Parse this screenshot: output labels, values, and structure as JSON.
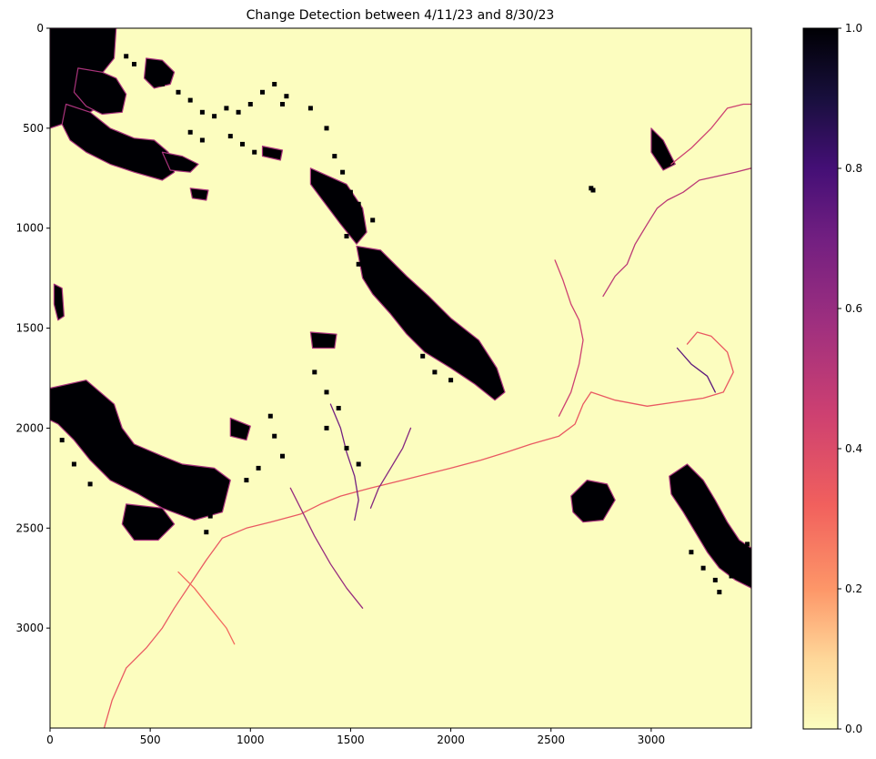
{
  "chart_data": {
    "type": "heatmap",
    "title": "Change Detection between 4/11/23 and 8/30/23",
    "xlabel": "",
    "ylabel": "",
    "xlim": [
      0,
      3500
    ],
    "ylim": [
      3500,
      0
    ],
    "x_ticks": [
      0,
      500,
      1000,
      1500,
      2000,
      2500,
      3000
    ],
    "y_ticks": [
      0,
      500,
      1000,
      1500,
      2000,
      2500,
      3000
    ],
    "colorbar": {
      "colormap": "magma_r",
      "range": [
        0,
        1
      ],
      "ticks": [
        "0.0",
        "0.2",
        "0.4",
        "0.6",
        "0.8",
        "1.0"
      ]
    },
    "background_value": 0.0,
    "grid": false,
    "change_regions": [
      {
        "points": [
          [
            0,
            0
          ],
          [
            330,
            0
          ],
          [
            320,
            150
          ],
          [
            240,
            250
          ],
          [
            230,
            400
          ],
          [
            140,
            460
          ],
          [
            60,
            480
          ],
          [
            0,
            500
          ]
        ],
        "value": 1.0
      },
      {
        "points": [
          [
            80,
            380
          ],
          [
            200,
            420
          ],
          [
            300,
            500
          ],
          [
            420,
            550
          ],
          [
            520,
            560
          ],
          [
            590,
            620
          ],
          [
            620,
            720
          ],
          [
            560,
            760
          ],
          [
            420,
            720
          ],
          [
            300,
            680
          ],
          [
            180,
            620
          ],
          [
            100,
            560
          ],
          [
            60,
            480
          ]
        ],
        "value": 1.0
      },
      {
        "points": [
          [
            140,
            200
          ],
          [
            260,
            220
          ],
          [
            330,
            250
          ],
          [
            380,
            330
          ],
          [
            360,
            420
          ],
          [
            260,
            430
          ],
          [
            180,
            390
          ],
          [
            120,
            320
          ]
        ],
        "value": 1.0
      },
      {
        "points": [
          [
            480,
            150
          ],
          [
            560,
            160
          ],
          [
            620,
            220
          ],
          [
            600,
            280
          ],
          [
            520,
            300
          ],
          [
            470,
            250
          ]
        ],
        "value": 1.0
      },
      {
        "points": [
          [
            560,
            620
          ],
          [
            660,
            640
          ],
          [
            740,
            680
          ],
          [
            700,
            720
          ],
          [
            600,
            710
          ]
        ],
        "value": 1.0
      },
      {
        "points": [
          [
            1530,
            1090
          ],
          [
            1650,
            1110
          ],
          [
            1780,
            1240
          ],
          [
            1890,
            1340
          ],
          [
            2000,
            1450
          ],
          [
            2140,
            1560
          ],
          [
            2230,
            1700
          ],
          [
            2270,
            1820
          ],
          [
            2220,
            1860
          ],
          [
            2120,
            1780
          ],
          [
            2000,
            1700
          ],
          [
            1870,
            1620
          ],
          [
            1780,
            1530
          ],
          [
            1700,
            1430
          ],
          [
            1610,
            1330
          ],
          [
            1560,
            1250
          ]
        ],
        "value": 1.0
      },
      {
        "points": [
          [
            1300,
            700
          ],
          [
            1480,
            780
          ],
          [
            1560,
            900
          ],
          [
            1580,
            1020
          ],
          [
            1530,
            1080
          ],
          [
            1450,
            980
          ],
          [
            1360,
            860
          ],
          [
            1300,
            780
          ]
        ],
        "value": 1.0
      },
      {
        "points": [
          [
            0,
            1800
          ],
          [
            180,
            1760
          ],
          [
            320,
            1880
          ],
          [
            360,
            2000
          ],
          [
            420,
            2080
          ],
          [
            560,
            2140
          ],
          [
            660,
            2180
          ],
          [
            820,
            2200
          ],
          [
            900,
            2260
          ],
          [
            860,
            2420
          ],
          [
            720,
            2460
          ],
          [
            560,
            2400
          ],
          [
            440,
            2330
          ],
          [
            300,
            2260
          ],
          [
            200,
            2160
          ],
          [
            120,
            2060
          ],
          [
            40,
            1980
          ],
          [
            0,
            1960
          ]
        ],
        "value": 1.0
      },
      {
        "points": [
          [
            380,
            2380
          ],
          [
            560,
            2400
          ],
          [
            620,
            2480
          ],
          [
            540,
            2560
          ],
          [
            420,
            2560
          ],
          [
            360,
            2480
          ]
        ],
        "value": 1.0
      },
      {
        "points": [
          [
            2600,
            2340
          ],
          [
            2680,
            2260
          ],
          [
            2780,
            2280
          ],
          [
            2820,
            2360
          ],
          [
            2760,
            2460
          ],
          [
            2660,
            2470
          ],
          [
            2610,
            2420
          ]
        ],
        "value": 1.0
      },
      {
        "points": [
          [
            3090,
            2240
          ],
          [
            3180,
            2180
          ],
          [
            3260,
            2260
          ],
          [
            3320,
            2360
          ],
          [
            3380,
            2470
          ],
          [
            3440,
            2560
          ],
          [
            3500,
            2600
          ],
          [
            3500,
            2800
          ],
          [
            3420,
            2760
          ],
          [
            3340,
            2700
          ],
          [
            3280,
            2620
          ],
          [
            3220,
            2520
          ],
          [
            3160,
            2420
          ],
          [
            3100,
            2330
          ]
        ],
        "value": 1.0
      },
      {
        "points": [
          [
            3000,
            500
          ],
          [
            3060,
            560
          ],
          [
            3120,
            680
          ],
          [
            3060,
            710
          ],
          [
            3000,
            620
          ]
        ],
        "value": 1.0
      },
      {
        "points": [
          [
            900,
            1950
          ],
          [
            1000,
            1990
          ],
          [
            980,
            2060
          ],
          [
            900,
            2040
          ]
        ],
        "value": 1.0
      },
      {
        "points": [
          [
            20,
            1280
          ],
          [
            60,
            1300
          ],
          [
            70,
            1440
          ],
          [
            40,
            1460
          ],
          [
            20,
            1380
          ]
        ],
        "value": 1.0
      },
      {
        "points": [
          [
            1300,
            1520
          ],
          [
            1430,
            1530
          ],
          [
            1420,
            1600
          ],
          [
            1310,
            1600
          ]
        ],
        "value": 1.0
      },
      {
        "points": [
          [
            700,
            800
          ],
          [
            790,
            810
          ],
          [
            780,
            860
          ],
          [
            710,
            850
          ]
        ],
        "value": 1.0
      },
      {
        "points": [
          [
            1060,
            590
          ],
          [
            1160,
            610
          ],
          [
            1150,
            660
          ],
          [
            1060,
            640
          ]
        ],
        "value": 1.0
      }
    ],
    "change_lines": [
      {
        "points": [
          [
            270,
            3500
          ],
          [
            310,
            3360
          ],
          [
            380,
            3200
          ],
          [
            480,
            3100
          ],
          [
            560,
            3000
          ],
          [
            620,
            2900
          ],
          [
            700,
            2780
          ],
          [
            780,
            2660
          ],
          [
            860,
            2550
          ],
          [
            980,
            2500
          ],
          [
            1100,
            2470
          ],
          [
            1250,
            2430
          ],
          [
            1350,
            2380
          ],
          [
            1450,
            2340
          ],
          [
            1600,
            2300
          ],
          [
            1760,
            2260
          ],
          [
            1880,
            2230
          ],
          [
            2000,
            2200
          ],
          [
            2150,
            2160
          ],
          [
            2280,
            2120
          ],
          [
            2400,
            2080
          ],
          [
            2540,
            2040
          ],
          [
            2620,
            1980
          ],
          [
            2660,
            1880
          ],
          [
            2700,
            1820
          ],
          [
            2820,
            1860
          ],
          [
            2980,
            1890
          ],
          [
            3120,
            1870
          ],
          [
            3260,
            1850
          ],
          [
            3360,
            1820
          ],
          [
            3410,
            1720
          ],
          [
            3380,
            1620
          ],
          [
            3300,
            1540
          ],
          [
            3230,
            1520
          ],
          [
            3180,
            1580
          ]
        ],
        "value": 0.35
      },
      {
        "points": [
          [
            2540,
            1940
          ],
          [
            2600,
            1820
          ],
          [
            2640,
            1680
          ],
          [
            2660,
            1560
          ],
          [
            2640,
            1460
          ],
          [
            2600,
            1380
          ],
          [
            2560,
            1260
          ],
          [
            2520,
            1160
          ]
        ],
        "value": 0.45
      },
      {
        "points": [
          [
            2760,
            1340
          ],
          [
            2820,
            1240
          ],
          [
            2880,
            1180
          ],
          [
            2920,
            1080
          ],
          [
            2980,
            980
          ],
          [
            3030,
            900
          ],
          [
            3080,
            860
          ],
          [
            3160,
            820
          ],
          [
            3240,
            760
          ],
          [
            3330,
            740
          ],
          [
            3420,
            720
          ],
          [
            3500,
            700
          ]
        ],
        "value": 0.5
      },
      {
        "points": [
          [
            3100,
            680
          ],
          [
            3200,
            600
          ],
          [
            3300,
            500
          ],
          [
            3380,
            400
          ],
          [
            3460,
            380
          ],
          [
            3500,
            380
          ]
        ],
        "value": 0.45
      },
      {
        "points": [
          [
            1400,
            1880
          ],
          [
            1450,
            2000
          ],
          [
            1480,
            2120
          ],
          [
            1520,
            2240
          ],
          [
            1540,
            2360
          ],
          [
            1520,
            2460
          ]
        ],
        "value": 0.7
      },
      {
        "points": [
          [
            1200,
            2300
          ],
          [
            1260,
            2420
          ],
          [
            1320,
            2540
          ],
          [
            1400,
            2680
          ],
          [
            1480,
            2800
          ],
          [
            1560,
            2900
          ]
        ],
        "value": 0.6
      },
      {
        "points": [
          [
            1800,
            2000
          ],
          [
            1760,
            2100
          ],
          [
            1700,
            2200
          ],
          [
            1640,
            2300
          ],
          [
            1600,
            2400
          ]
        ],
        "value": 0.65
      },
      {
        "points": [
          [
            3130,
            1600
          ],
          [
            3200,
            1680
          ],
          [
            3280,
            1740
          ],
          [
            3320,
            1820
          ]
        ],
        "value": 0.75
      },
      {
        "points": [
          [
            640,
            2720
          ],
          [
            720,
            2800
          ],
          [
            800,
            2900
          ],
          [
            880,
            3000
          ],
          [
            920,
            3080
          ]
        ],
        "value": 0.3
      }
    ],
    "speckle_blocks": [
      [
        [
          150,
          40
        ],
        [
          230,
          70
        ],
        [
          300,
          90
        ],
        [
          380,
          140
        ],
        [
          420,
          180
        ],
        [
          560,
          280
        ],
        [
          640,
          320
        ],
        [
          700,
          360
        ],
        [
          760,
          420
        ],
        [
          820,
          440
        ],
        [
          880,
          400
        ],
        [
          940,
          420
        ],
        [
          1000,
          380
        ],
        [
          1060,
          320
        ],
        [
          1120,
          280
        ],
        [
          1180,
          340
        ],
        [
          900,
          540
        ],
        [
          960,
          580
        ],
        [
          1020,
          620
        ],
        [
          700,
          520
        ],
        [
          760,
          560
        ]
      ],
      [
        [
          1160,
          380
        ],
        [
          1300,
          400
        ],
        [
          1380,
          500
        ],
        [
          1420,
          640
        ],
        [
          1460,
          720
        ],
        [
          1500,
          820
        ],
        [
          1540,
          880
        ],
        [
          1610,
          960
        ],
        [
          1480,
          1040
        ],
        [
          1540,
          1180
        ],
        [
          1860,
          1640
        ],
        [
          1920,
          1720
        ],
        [
          2000,
          1760
        ]
      ],
      [
        [
          1320,
          1720
        ],
        [
          1380,
          1820
        ],
        [
          1440,
          1900
        ],
        [
          1380,
          2000
        ],
        [
          1480,
          2100
        ],
        [
          1540,
          2180
        ],
        [
          1100,
          1940
        ],
        [
          1120,
          2040
        ],
        [
          1160,
          2140
        ],
        [
          1040,
          2200
        ],
        [
          980,
          2260
        ],
        [
          860,
          2320
        ],
        [
          800,
          2440
        ],
        [
          780,
          2520
        ],
        [
          200,
          2280
        ],
        [
          120,
          2180
        ],
        [
          60,
          2060
        ],
        [
          160,
          1960
        ]
      ],
      [
        [
          3200,
          2620
        ],
        [
          3260,
          2700
        ],
        [
          3320,
          2760
        ],
        [
          3340,
          2820
        ],
        [
          3400,
          2740
        ],
        [
          3440,
          2660
        ],
        [
          3480,
          2580
        ],
        [
          3150,
          2300
        ],
        [
          3230,
          2390
        ],
        [
          3290,
          2470
        ],
        [
          2700,
          800
        ],
        [
          2710,
          810
        ]
      ]
    ]
  }
}
